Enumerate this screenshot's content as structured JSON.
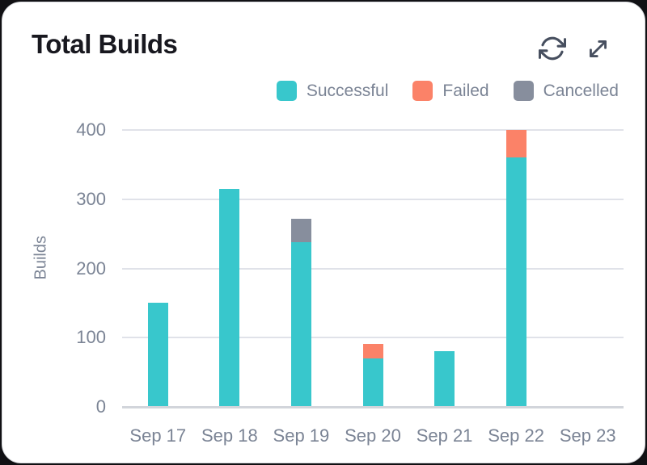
{
  "card": {
    "title": "Total Builds"
  },
  "toolbar": {
    "buttons": [
      {
        "name": "refresh",
        "icon": "refresh-icon"
      },
      {
        "name": "expand",
        "icon": "expand-icon"
      }
    ]
  },
  "legend": {
    "items": [
      {
        "label": "Successful",
        "color": "#38c7cc"
      },
      {
        "label": "Failed",
        "color": "#fb8268"
      },
      {
        "label": "Cancelled",
        "color": "#878e9d"
      }
    ]
  },
  "chart_data": {
    "type": "bar",
    "stacked": true,
    "title": "Total Builds",
    "categories": [
      "Sep 17",
      "Sep 18",
      "Sep 19",
      "Sep 20",
      "Sep 21",
      "Sep 22",
      "Sep 23"
    ],
    "series": [
      {
        "name": "Successful",
        "color": "#38c7cc",
        "values": [
          150,
          315,
          238,
          70,
          81,
          360,
          0
        ]
      },
      {
        "name": "Failed",
        "color": "#fb8268",
        "values": [
          0,
          0,
          0,
          21,
          0,
          40,
          0
        ]
      },
      {
        "name": "Cancelled",
        "color": "#878e9d",
        "values": [
          0,
          0,
          34,
          0,
          0,
          0,
          0
        ]
      }
    ],
    "xlabel": "",
    "ylabel": "Builds",
    "yticks": [
      0,
      100,
      200,
      300,
      400
    ],
    "ylim": [
      0,
      400
    ],
    "grid": true,
    "legend_position": "top-right"
  },
  "colors": {
    "page_bg": "#111114",
    "card_bg": "#ffffff",
    "card_border": "#d8dade",
    "title_text": "#18181f",
    "axis_text": "#7b8495",
    "gridline": "#e0e2e9",
    "baseline": "#d2d5db",
    "icon": "#474f5f"
  }
}
